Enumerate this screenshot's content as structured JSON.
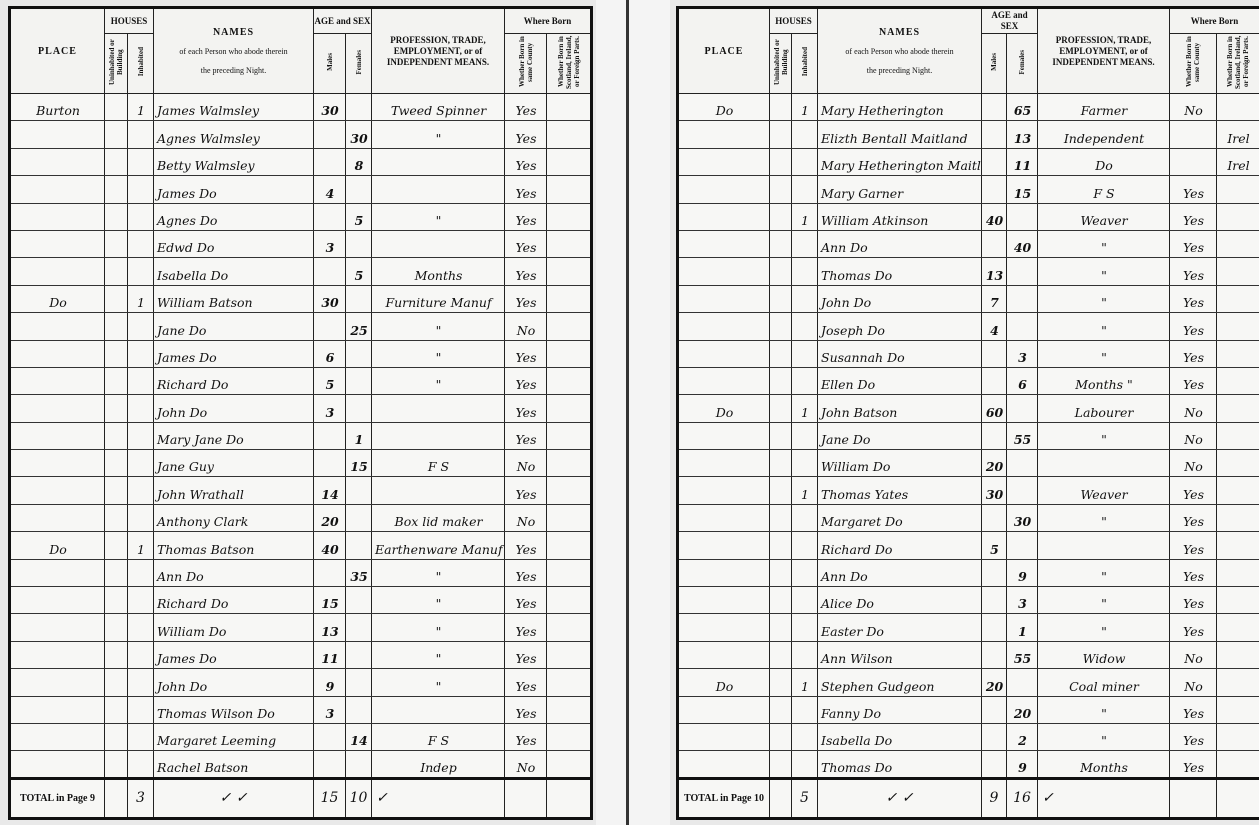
{
  "headers": {
    "place": "PLACE",
    "houses": "HOUSES",
    "uninhabited": "Uninhabited or Building",
    "inhabited": "Inhabited",
    "names": "NAMES",
    "names_sub1": "of each Person who abode therein",
    "names_sub2": "the preceding Night.",
    "age": "AGE and SEX",
    "males": "Males",
    "females": "Females",
    "profession": "PROFESSION, TRADE, EMPLOYMENT, or of INDEPENDENT MEANS.",
    "where_born": "Where Born",
    "born_county": "Whether Born in same County",
    "born_foreign": "Whether Born in Scotland, Ireland, or Foreign Parts."
  },
  "pages": [
    {
      "total_label": "TOTAL in Page 9",
      "total": {
        "uninhabited": "",
        "inhabited": "3",
        "names": "✓            ✓",
        "males": "15",
        "females": "10",
        "profession": "✓"
      },
      "rows": [
        [
          "Burton",
          "",
          "1",
          "James Walmsley",
          "30",
          "",
          "Tweed Spinner",
          "Yes",
          ""
        ],
        [
          "",
          "",
          "",
          "Agnes Walmsley",
          "",
          "30",
          "\"",
          "Yes",
          ""
        ],
        [
          "",
          "",
          "",
          "Betty Walmsley",
          "",
          "8",
          "",
          "Yes",
          ""
        ],
        [
          "",
          "",
          "",
          "James    Do",
          "4",
          "",
          "",
          "Yes",
          ""
        ],
        [
          "",
          "",
          "",
          "Agnes    Do",
          "",
          "5",
          "\"",
          "Yes",
          ""
        ],
        [
          "",
          "",
          "",
          "Edwd    Do",
          "3",
          "",
          "",
          "Yes",
          ""
        ],
        [
          "",
          "",
          "",
          "Isabella    Do",
          "",
          "5",
          "Months",
          "Yes",
          ""
        ],
        [
          "Do",
          "",
          "1",
          "William Batson",
          "30",
          "",
          "Furniture Manuf",
          "Yes",
          ""
        ],
        [
          "",
          "",
          "",
          "Jane    Do",
          "",
          "25",
          "\"",
          "No",
          ""
        ],
        [
          "",
          "",
          "",
          "James    Do",
          "6",
          "",
          "\"",
          "Yes",
          ""
        ],
        [
          "",
          "",
          "",
          "Richard    Do",
          "5",
          "",
          "\"",
          "Yes",
          ""
        ],
        [
          "",
          "",
          "",
          "John    Do",
          "3",
          "",
          "",
          "Yes",
          ""
        ],
        [
          "",
          "",
          "",
          "Mary Jane Do",
          "",
          "1",
          "",
          "Yes",
          ""
        ],
        [
          "",
          "",
          "",
          "Jane Guy",
          "",
          "15",
          "F S",
          "No",
          ""
        ],
        [
          "",
          "",
          "",
          "John Wrathall",
          "14",
          "",
          "",
          "Yes",
          ""
        ],
        [
          "",
          "",
          "",
          "Anthony Clark",
          "20",
          "",
          "Box lid maker",
          "No",
          ""
        ],
        [
          "Do",
          "",
          "1",
          "Thomas Batson",
          "40",
          "",
          "Earthenware Manuf",
          "Yes",
          ""
        ],
        [
          "",
          "",
          "",
          "Ann    Do",
          "",
          "35",
          "\"",
          "Yes",
          ""
        ],
        [
          "",
          "",
          "",
          "Richard    Do",
          "15",
          "",
          "\"",
          "Yes",
          ""
        ],
        [
          "",
          "",
          "",
          "William    Do",
          "13",
          "",
          "\"",
          "Yes",
          ""
        ],
        [
          "",
          "",
          "",
          "James    Do",
          "11",
          "",
          "\"",
          "Yes",
          ""
        ],
        [
          "",
          "",
          "",
          "John    Do",
          "9",
          "",
          "\"",
          "Yes",
          ""
        ],
        [
          "",
          "",
          "",
          "Thomas Wilson Do",
          "3",
          "",
          "",
          "Yes",
          ""
        ],
        [
          "",
          "",
          "",
          "Margaret Leeming",
          "",
          "14",
          "F S",
          "Yes",
          ""
        ],
        [
          "",
          "",
          "",
          "Rachel Batson",
          "",
          "",
          "Indep",
          "No",
          ""
        ]
      ]
    },
    {
      "total_label": "TOTAL in Page 10",
      "total": {
        "uninhabited": "",
        "inhabited": "5",
        "names": "✓            ✓",
        "males": "9",
        "females": "16",
        "profession": "✓"
      },
      "rows": [
        [
          "Do",
          "",
          "1",
          "Mary Hetherington",
          "",
          "65",
          "Farmer",
          "No",
          ""
        ],
        [
          "",
          "",
          "",
          "Elizth Bentall Maitland",
          "",
          "13",
          "Independent",
          "",
          "Irel"
        ],
        [
          "",
          "",
          "",
          "Mary Hetherington Maitland",
          "",
          "11",
          "Do",
          "",
          "Irel"
        ],
        [
          "",
          "",
          "",
          "Mary Garner",
          "",
          "15",
          "F S",
          "Yes",
          ""
        ],
        [
          "",
          "",
          "1",
          "William Atkinson",
          "40",
          "",
          "Weaver",
          "Yes",
          ""
        ],
        [
          "",
          "",
          "",
          "Ann    Do",
          "",
          "40",
          "\"",
          "Yes",
          ""
        ],
        [
          "",
          "",
          "",
          "Thomas    Do",
          "13",
          "",
          "\"",
          "Yes",
          ""
        ],
        [
          "",
          "",
          "",
          "John    Do",
          "7",
          "",
          "\"",
          "Yes",
          ""
        ],
        [
          "",
          "",
          "",
          "Joseph    Do",
          "4",
          "",
          "\"",
          "Yes",
          ""
        ],
        [
          "",
          "",
          "",
          "Susannah Do",
          "",
          "3",
          "\"",
          "Yes",
          ""
        ],
        [
          "",
          "",
          "",
          "Ellen    Do",
          "",
          "6",
          "Months \"",
          "Yes",
          ""
        ],
        [
          "Do",
          "",
          "1",
          "John Batson",
          "60",
          "",
          "Labourer",
          "No",
          ""
        ],
        [
          "",
          "",
          "",
          "Jane    Do",
          "",
          "55",
          "\"",
          "No",
          ""
        ],
        [
          "",
          "",
          "",
          "William    Do",
          "20",
          "",
          "",
          "No",
          ""
        ],
        [
          "",
          "",
          "1",
          "Thomas Yates",
          "30",
          "",
          "Weaver",
          "Yes",
          ""
        ],
        [
          "",
          "",
          "",
          "Margaret    Do",
          "",
          "30",
          "\"",
          "Yes",
          ""
        ],
        [
          "",
          "",
          "",
          "Richard    Do",
          "5",
          "",
          "",
          "Yes",
          ""
        ],
        [
          "",
          "",
          "",
          "Ann    Do",
          "",
          "9",
          "\"",
          "Yes",
          ""
        ],
        [
          "",
          "",
          "",
          "Alice    Do",
          "",
          "3",
          "\"",
          "Yes",
          ""
        ],
        [
          "",
          "",
          "",
          "Easter    Do",
          "",
          "1",
          "\"",
          "Yes",
          ""
        ],
        [
          "",
          "",
          "",
          "Ann Wilson",
          "",
          "55",
          "Widow",
          "No",
          ""
        ],
        [
          "Do",
          "",
          "1",
          "Stephen Gudgeon",
          "20",
          "",
          "Coal miner",
          "No",
          ""
        ],
        [
          "",
          "",
          "",
          "Fanny    Do",
          "",
          "20",
          "\"",
          "Yes",
          ""
        ],
        [
          "",
          "",
          "",
          "Isabella    Do",
          "",
          "2",
          "\"",
          "Yes",
          ""
        ],
        [
          "",
          "",
          "",
          "Thomas    Do",
          "",
          "9",
          "Months",
          "Yes",
          ""
        ]
      ]
    }
  ]
}
